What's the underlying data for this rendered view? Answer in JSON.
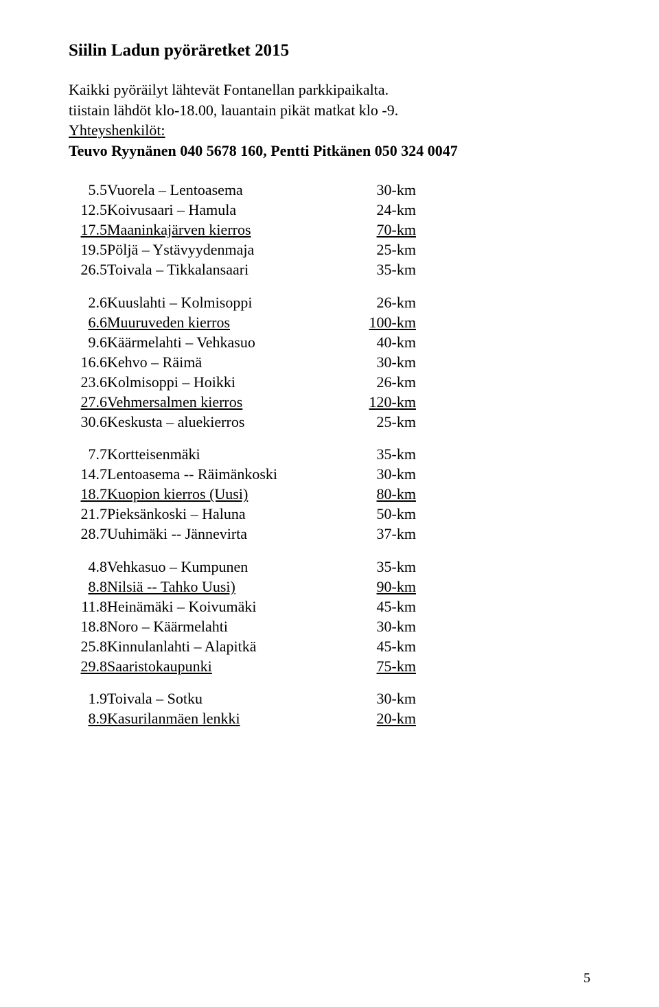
{
  "title": "Siilin Ladun pyöräretket 2015",
  "intro_line1": "Kaikki pyöräilyt lähtevät Fontanellan parkkipaikalta.",
  "intro_line2": "tiistain lähdöt klo-18.00,  lauantain pikät matkat  klo -9.",
  "contacts_label": "Yhteyshenkilöt:",
  "contacts_line": "Teuvo Ryynänen   040 5678 160,  Pentti Pitkänen  050 324 0047",
  "rows": [
    {
      "date": "5.5",
      "route": "Vuorela – Lentoasema",
      "dist": "30-km",
      "underline": false,
      "gap": false
    },
    {
      "date": "12.5",
      "route": "Koivusaari – Hamula",
      "dist": "24-km",
      "underline": false,
      "gap": false
    },
    {
      "date": "17.5",
      "route": "Maaninkajärven kierros",
      "dist": "70-km",
      "underline": true,
      "gap": false
    },
    {
      "date": "19.5",
      "route": "Pöljä – Ystävyydenmaja",
      "dist": "25-km",
      "underline": false,
      "gap": false
    },
    {
      "date": "26.5",
      "route": "Toivala – Tikkalansaari",
      "dist": "35-km",
      "underline": false,
      "gap": true
    },
    {
      "date": "2.6",
      "route": "Kuuslahti – Kolmisoppi",
      "dist": "26-km",
      "underline": false,
      "gap": false
    },
    {
      "date": "6.6",
      "route": "Muuruveden kierros",
      "dist": "100-km",
      "underline": true,
      "gap": false
    },
    {
      "date": "9.6",
      "route": "Käärmelahti – Vehkasuo",
      "dist": "40-km",
      "underline": false,
      "gap": false
    },
    {
      "date": "16.6",
      "route": "Kehvo – Räimä",
      "dist": "30-km",
      "underline": false,
      "gap": false
    },
    {
      "date": "23.6",
      "route": "Kolmisoppi – Hoikki",
      "dist": "26-km",
      "underline": false,
      "gap": false
    },
    {
      "date": "27.6",
      "route": "Vehmersalmen kierros",
      "dist": "120-km",
      "underline": true,
      "gap": false
    },
    {
      "date": "30.6",
      "route": "Keskusta – aluekierros",
      "dist": "25-km",
      "underline": false,
      "gap": true
    },
    {
      "date": "7.7",
      "route": "Kortteisenmäki",
      "dist": "35-km",
      "underline": false,
      "gap": false
    },
    {
      "date": "14.7",
      "route": "Lentoasema -- Räimänkoski",
      "dist": "30-km",
      "underline": false,
      "gap": false
    },
    {
      "date": "18.7",
      "route": "Kuopion kierros (Uusi)",
      "dist": "80-km",
      "underline": true,
      "gap": false
    },
    {
      "date": "21.7",
      "route": "Pieksänkoski – Haluna",
      "dist": "50-km",
      "underline": false,
      "gap": false
    },
    {
      "date": "28.7",
      "route": "Uuhimäki -- Jännevirta",
      "dist": "37-km",
      "underline": false,
      "gap": true
    },
    {
      "date": "4.8",
      "route": "Vehkasuo – Kumpunen",
      "dist": "35-km",
      "underline": false,
      "gap": false
    },
    {
      "date": "8.8",
      "route": "Nilsiä -- Tahko Uusi)",
      "dist": "90-km",
      "underline": true,
      "gap": false
    },
    {
      "date": "11.8",
      "route": "Heinämäki – Koivumäki",
      "dist": "45-km",
      "underline": false,
      "gap": false
    },
    {
      "date": "18.8",
      "route": "Noro – Käärmelahti",
      "dist": "30-km",
      "underline": false,
      "gap": false
    },
    {
      "date": "25.8",
      "route": "Kinnulanlahti – Alapitkä",
      "dist": "45-km",
      "underline": false,
      "gap": false
    },
    {
      "date": "29.8",
      "route": "Saaristokaupunki",
      "dist": "75-km",
      "underline": true,
      "gap": true
    },
    {
      "date": "1.9",
      "route": "Toivala – Sotku",
      "dist": "30-km",
      "underline": false,
      "gap": false
    },
    {
      "date": "8.9",
      "route": "Kasurilanmäen lenkki",
      "dist": "20-km",
      "underline": true,
      "gap": false
    }
  ],
  "page_number": "5",
  "colors": {
    "text": "#000000",
    "background": "#ffffff"
  }
}
